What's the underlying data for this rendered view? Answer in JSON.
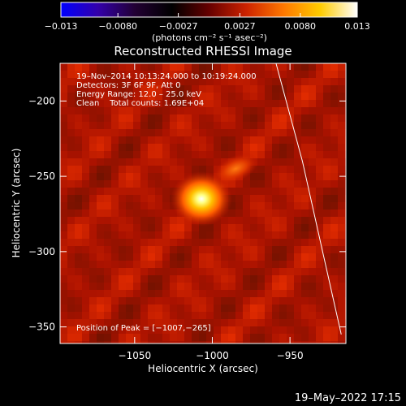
{
  "chart_data": {
    "type": "heatmap",
    "title": "Reconstructed RHESSI Image",
    "xlabel": "Heliocentric X (arcsec)",
    "ylabel": "Heliocentric Y (arcsec)",
    "xlim": [
      -1098,
      -914
    ],
    "ylim": [
      -361,
      -175
    ],
    "x_ticks": [
      -1050,
      -1000,
      -950
    ],
    "x_tick_labels": [
      "−1050",
      "−1000",
      "−950"
    ],
    "y_ticks": [
      -200,
      -250,
      -300,
      -350
    ],
    "y_tick_labels": [
      "−200",
      "−250",
      "−300",
      "−350"
    ],
    "colorbar": {
      "min": -0.013,
      "max": 0.013,
      "ticks": [
        -0.013,
        -0.008,
        -0.0027,
        0.0027,
        0.008,
        0.013
      ],
      "tick_labels": [
        "−0.013",
        "−0.0080",
        "−0.0027",
        "0.0027",
        "0.0080",
        "0.013"
      ],
      "unit_label": "(photons cm⁻² s⁻¹ asec⁻²)",
      "colormap": [
        "#0000ff",
        "#3300aa",
        "#220033",
        "#000000",
        "#660000",
        "#cc2200",
        "#ff7700",
        "#ffcc00",
        "#ffffff"
      ]
    },
    "info_lines": [
      "19–Nov–2014 10:13:24.000 to 10:19:24.000",
      "Detectors: 3F 6F 9F, Att 0",
      "Energy Range: 12.0 – 25.0 keV",
      "Clean    Total counts: 1.69E+04"
    ],
    "peak_label": "Position of Peak = [−1007,−265]",
    "sources": [
      {
        "x": -1007,
        "y": -265,
        "intensity": 1.0
      },
      {
        "x": -985,
        "y": -245,
        "intensity": 0.45
      }
    ],
    "limb": [
      {
        "x": -959,
        "y": -175
      },
      {
        "x": -942,
        "y": -240
      },
      {
        "x": -929,
        "y": -300
      },
      {
        "x": -917,
        "y": -355
      }
    ],
    "timestamp": "19–May–2022 17:15"
  }
}
